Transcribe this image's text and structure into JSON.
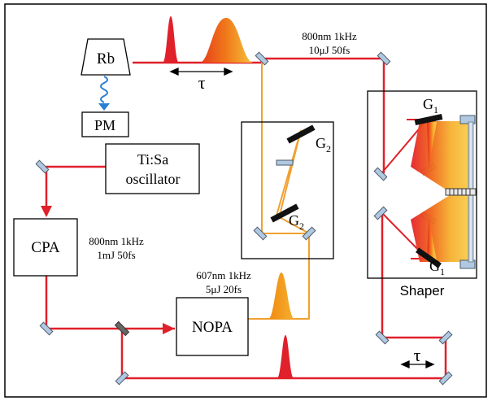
{
  "diagram": {
    "boxes": {
      "rb": "Rb",
      "pm": "PM",
      "oscillator_line1": "Ti:Sa",
      "oscillator_line2": "oscillator",
      "cpa": "CPA",
      "nopa": "NOPA"
    },
    "annotations": {
      "top_beam_line1": "800nm 1kHz",
      "top_beam_line2": "10μJ 50fs",
      "cpa_out_line1": "800nm 1kHz",
      "cpa_out_line2": "1mJ 50fs",
      "nopa_out_line1": "607nm 1kHz",
      "nopa_out_line2": "5μJ 20fs"
    },
    "delays": {
      "top": "τ",
      "bottom_right": "τ"
    },
    "gratings": {
      "compressor_g2_upper": {
        "main": "G",
        "sub": "2"
      },
      "compressor_g2_lower": {
        "main": "G",
        "sub": "2"
      },
      "shaper_g1_upper": {
        "main": "G",
        "sub": "1"
      },
      "shaper_g1_lower": {
        "main": "G",
        "sub": "1"
      }
    },
    "shaper_label": "Shaper",
    "colors": {
      "red_beam": "#e0202a",
      "orange_beam": "#f0a030",
      "fluorescence": "#2a7fd0",
      "mirror": "#b0c8e0"
    }
  }
}
